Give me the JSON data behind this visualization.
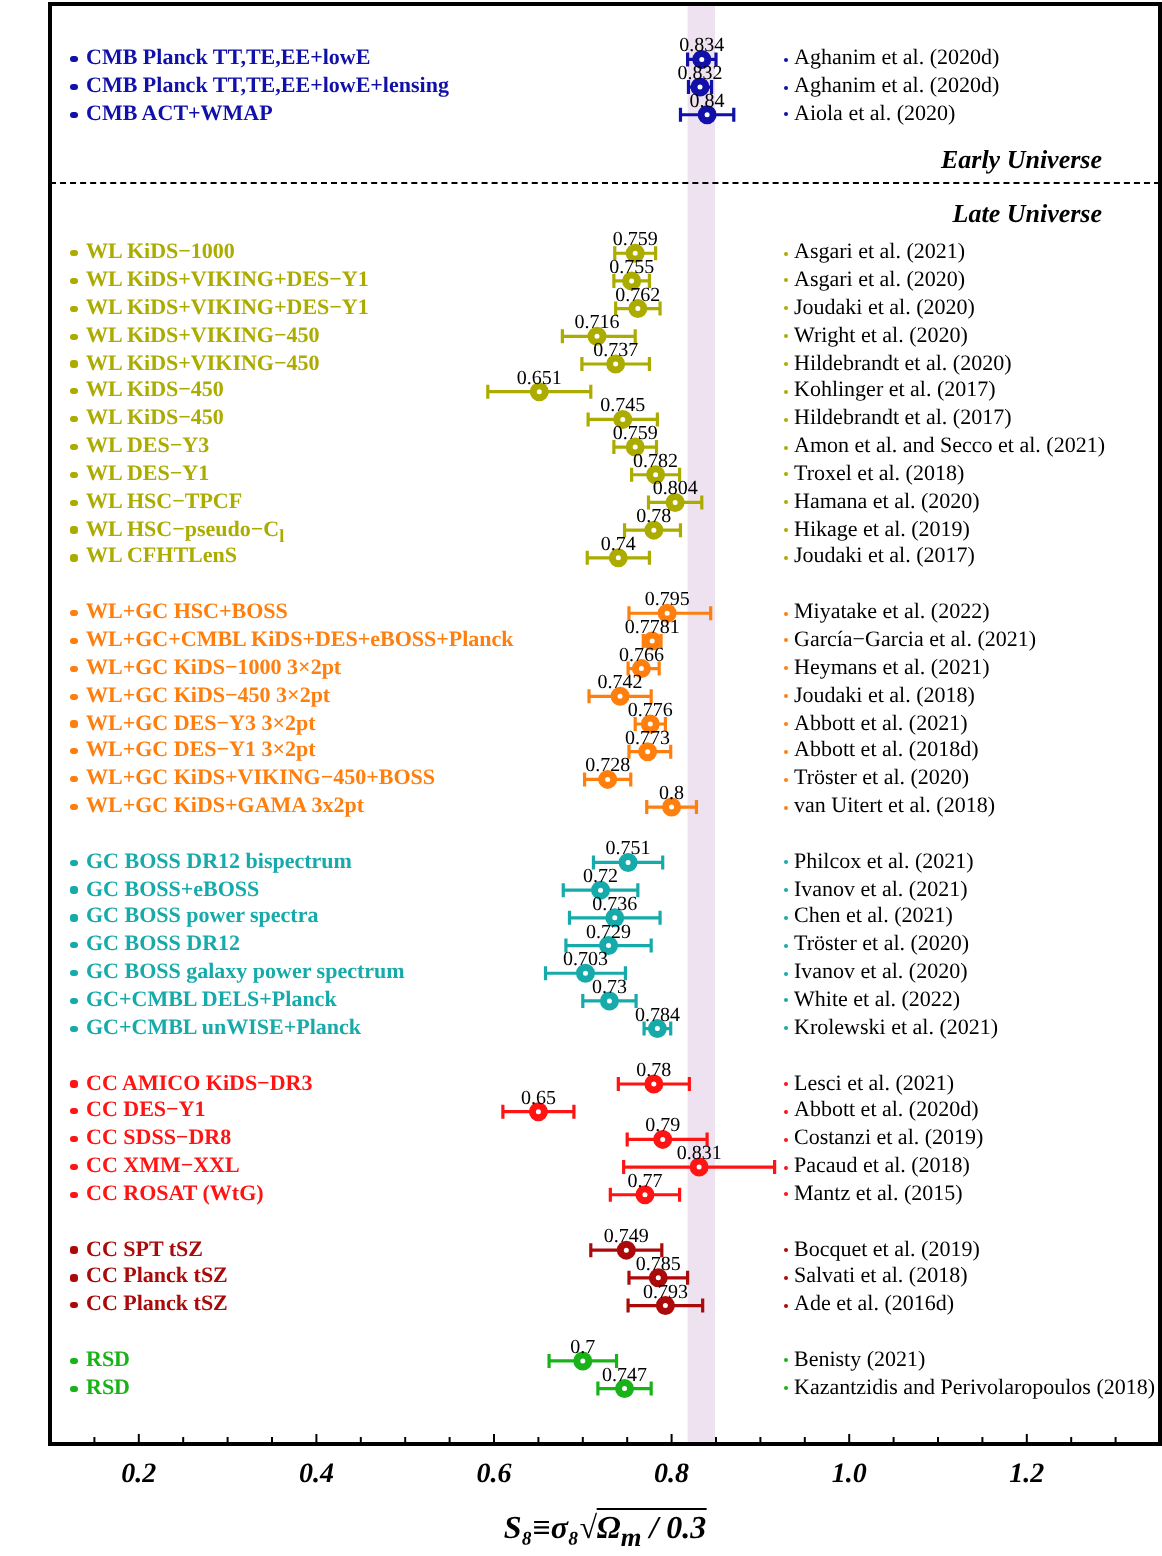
{
  "chart_data": {
    "type": "scatter",
    "orientation": "horizontal",
    "marker": "circle",
    "data_labels": true,
    "xlabel": "S₈≡σ₈√Ω$_{m}$ / 0.3",
    "annotations": [
      "Early Universe",
      "Late Universe"
    ],
    "xlim": [
      0.1,
      1.35
    ],
    "xticks": [
      {
        "value": 0.15,
        "label": null
      },
      0.2,
      {
        "value": 0.25,
        "label": null
      },
      {
        "value": 0.3,
        "label": null
      },
      {
        "value": 0.35,
        "label": null
      },
      0.4,
      {
        "value": 0.45,
        "label": null
      },
      {
        "value": 0.5,
        "label": null
      },
      {
        "value": 0.55,
        "label": null
      },
      0.6,
      {
        "value": 0.65,
        "label": null
      },
      {
        "value": 0.7,
        "label": null
      },
      {
        "value": 0.75,
        "label": null
      },
      0.8,
      {
        "value": 0.85,
        "label": null
      },
      {
        "value": 0.9,
        "label": null
      },
      {
        "value": 0.95,
        "label": null
      },
      {
        "value": 1,
        "label": "1.0"
      },
      {
        "value": 1.05,
        "label": null
      },
      {
        "value": 1.1,
        "label": null
      },
      {
        "value": 1.15,
        "label": null
      },
      1.2,
      {
        "value": 1.25,
        "label": null
      },
      {
        "value": 1.3,
        "label": null
      }
    ],
    "bands": [
      {
        "axis": "x",
        "from": 0.818,
        "to": 0.849,
        "color": "#eee2f0"
      }
    ],
    "categories": [
      "CMB Planck TT,TE,EE+lowE",
      "CMB Planck TT,TE,EE+lowE+lensing",
      "CMB ACT+WMAP",
      null,
      null,
      null,
      null,
      "WL KiDS−1000",
      "WL KiDS+VIKING+DES−Y1",
      "WL KiDS+VIKING+DES−Y1",
      "WL KiDS+VIKING−450",
      "WL KiDS+VIKING−450",
      "WL KiDS−450",
      "WL KiDS−450",
      "WL DES−Y3",
      "WL DES−Y1",
      "WL HSC−TPCF",
      "WL HSC−pseudo−C$_{l}$",
      "WL CFHTLenS",
      null,
      "WL+GC HSC+BOSS",
      "WL+GC+CMBL KiDS+DES+eBOSS+Planck",
      "WL+GC KiDS−1000 3×2pt",
      "WL+GC KiDS−450 3×2pt",
      "WL+GC DES−Y3 3×2pt",
      "WL+GC DES−Y1 3×2pt",
      "WL+GC KiDS+VIKING−450+BOSS",
      "WL+GC KiDS+GAMA 3x2pt",
      null,
      "GC BOSS DR12 bispectrum",
      "GC BOSS+eBOSS",
      "GC BOSS power spectra",
      "GC BOSS DR12",
      "GC BOSS galaxy power spectrum",
      "GC+CMBL DELS+Planck",
      "GC+CMBL unWISE+Planck",
      null,
      "CC AMICO KiDS−DR3",
      "CC DES−Y1",
      "CC SDSS−DR8",
      "CC XMM−XXL",
      "CC ROSAT (WtG)",
      null,
      "CC SPT tSZ",
      "CC Planck tSZ",
      "CC Planck tSZ",
      null,
      "RSD",
      "RSD"
    ],
    "y2_categories": [
      "Aghanim et al. (2020d)",
      "Aghanim et al. (2020d)",
      "Aiola et al. (2020)",
      null,
      null,
      null,
      null,
      "Asgari et al. (2021)",
      "Asgari et al. (2020)",
      "Joudaki et al. (2020)",
      "Wright et al. (2020)",
      "Hildebrandt et al. (2020)",
      "Kohlinger et al. (2017)",
      "Hildebrandt et al. (2017)",
      "Amon et al. and Secco et al. (2021)",
      "Troxel et al. (2018)",
      "Hamana et al. (2020)",
      "Hikage et al. (2019)",
      "Joudaki et al. (2017)",
      null,
      "Miyatake et al. (2022)",
      "García−Garcia et al. (2021)",
      "Heymans et al. (2021)",
      "Joudaki et al. (2018)",
      "Abbott et al. (2021)",
      "Abbott et al. (2018d)",
      "Tröster et al. (2020)",
      "van Uitert et al. (2018)",
      null,
      "Philcox et al. (2021)",
      "Ivanov et al. (2021)",
      "Chen et al. (2021)",
      "Tröster et al. (2020)",
      "Ivanov et al. (2020)",
      "White et al. (2022)",
      "Krolewski et al. (2021)",
      null,
      "Lesci et al. (2021)",
      "Abbott et al. (2020d)",
      "Costanzi et al. (2019)",
      "Pacaud et al. (2018)",
      "Mantz et al. (2015)",
      null,
      "Bocquet et al. (2019)",
      "Salvati et al. (2018)",
      "Ade et al. (2016d)",
      null,
      "Benisty (2021)",
      "Kazantzidis and Perivolaropoulos (2018)"
    ],
    "series": [
      {
        "color": "#1111aa",
        "values": [
          0.834,
          0.832,
          0.84,
          null,
          null,
          null,
          null,
          null,
          null,
          null,
          null,
          null,
          null,
          null,
          null,
          null,
          null,
          null,
          null,
          null,
          null,
          null,
          null,
          null,
          null,
          null,
          null,
          null,
          null,
          null,
          null,
          null,
          null,
          null,
          null,
          null,
          null,
          null,
          null,
          null,
          null,
          null,
          null,
          null,
          null,
          null,
          null,
          null,
          null
        ],
        "errors": [
          0.016,
          0.013,
          0.03,
          null,
          null,
          null,
          null,
          null,
          null,
          null,
          null,
          null,
          null,
          null,
          null,
          null,
          null,
          null,
          null,
          null,
          null,
          null,
          null,
          null,
          null,
          null,
          null,
          null,
          null,
          null,
          null,
          null,
          null,
          null,
          null,
          null,
          null,
          null,
          null,
          null,
          null,
          null,
          null,
          null,
          null,
          null,
          null,
          null,
          null
        ]
      },
      {
        "color": "#acac00",
        "values": [
          null,
          null,
          null,
          null,
          null,
          null,
          null,
          0.759,
          0.755,
          0.762,
          0.716,
          0.737,
          0.651,
          0.745,
          0.759,
          0.782,
          0.804,
          0.78,
          0.74,
          null,
          null,
          null,
          null,
          null,
          null,
          null,
          null,
          null,
          null,
          null,
          null,
          null,
          null,
          null,
          null,
          null,
          null,
          null,
          null,
          null,
          null,
          null,
          null,
          null,
          null,
          null,
          null,
          null,
          null
        ],
        "errors": [
          null,
          null,
          null,
          null,
          null,
          null,
          null,
          0.023,
          0.02,
          0.025,
          [
            0.677,
            0.759
          ],
          0.038,
          0.058,
          0.039,
          0.024,
          0.027,
          0.03,
          [
            0.747,
            0.81
          ],
          0.035,
          null,
          null,
          null,
          null,
          null,
          null,
          null,
          null,
          null,
          null,
          null,
          null,
          null,
          null,
          null,
          null,
          null,
          null,
          null,
          null,
          null,
          null,
          null,
          null,
          null,
          null,
          null,
          null,
          null,
          null
        ]
      },
      {
        "color": "#ff7f0e",
        "values": [
          null,
          null,
          null,
          null,
          null,
          null,
          null,
          null,
          null,
          null,
          null,
          null,
          null,
          null,
          null,
          null,
          null,
          null,
          null,
          null,
          0.795,
          0.7781,
          0.766,
          0.742,
          0.776,
          0.773,
          0.728,
          0.8,
          null,
          null,
          null,
          null,
          null,
          null,
          null,
          null,
          null,
          null,
          null,
          null,
          null,
          null,
          null,
          null,
          null,
          null,
          null,
          null,
          null
        ],
        "errors": [
          null,
          null,
          null,
          null,
          null,
          null,
          null,
          null,
          null,
          null,
          null,
          null,
          null,
          null,
          null,
          null,
          null,
          null,
          null,
          null,
          [
            0.752,
            0.844
          ],
          0.01,
          [
            0.751,
            0.786
          ],
          0.035,
          0.017,
          [
            0.752,
            0.799
          ],
          0.026,
          0.028,
          null,
          null,
          null,
          null,
          null,
          null,
          null,
          null,
          null,
          null,
          null,
          null,
          null,
          null,
          null,
          null,
          null,
          null,
          null,
          null,
          null
        ]
      },
      {
        "color": "#17aaaa",
        "values": [
          null,
          null,
          null,
          null,
          null,
          null,
          null,
          null,
          null,
          null,
          null,
          null,
          null,
          null,
          null,
          null,
          null,
          null,
          null,
          null,
          null,
          null,
          null,
          null,
          null,
          null,
          null,
          null,
          null,
          0.751,
          0.72,
          0.736,
          0.729,
          0.703,
          0.73,
          0.784,
          null,
          null,
          null,
          null,
          null,
          null,
          null,
          null,
          null,
          null,
          null,
          null,
          null
        ],
        "errors": [
          null,
          null,
          null,
          null,
          null,
          null,
          null,
          null,
          null,
          null,
          null,
          null,
          null,
          null,
          null,
          null,
          null,
          null,
          null,
          null,
          null,
          null,
          null,
          null,
          null,
          null,
          null,
          null,
          null,
          0.039,
          0.042,
          0.051,
          0.048,
          0.045,
          0.03,
          0.015,
          null,
          null,
          null,
          null,
          null,
          null,
          null,
          null,
          null,
          null,
          null,
          null,
          null
        ]
      },
      {
        "color": "#ff1414",
        "values": [
          null,
          null,
          null,
          null,
          null,
          null,
          null,
          null,
          null,
          null,
          null,
          null,
          null,
          null,
          null,
          null,
          null,
          null,
          null,
          null,
          null,
          null,
          null,
          null,
          null,
          null,
          null,
          null,
          null,
          null,
          null,
          null,
          null,
          null,
          null,
          null,
          null,
          0.78,
          0.65,
          0.79,
          0.831,
          0.77,
          null,
          null,
          null,
          null,
          null,
          null,
          null
        ],
        "errors": [
          null,
          null,
          null,
          null,
          null,
          null,
          null,
          null,
          null,
          null,
          null,
          null,
          null,
          null,
          null,
          null,
          null,
          null,
          null,
          null,
          null,
          null,
          null,
          null,
          null,
          null,
          null,
          null,
          null,
          null,
          null,
          null,
          null,
          null,
          null,
          null,
          null,
          0.04,
          0.04,
          [
            0.75,
            0.84
          ],
          0.085,
          0.039,
          null,
          null,
          null,
          null,
          null,
          null,
          null
        ]
      },
      {
        "color": "#aa0a0a",
        "values": [
          null,
          null,
          null,
          null,
          null,
          null,
          null,
          null,
          null,
          null,
          null,
          null,
          null,
          null,
          null,
          null,
          null,
          null,
          null,
          null,
          null,
          null,
          null,
          null,
          null,
          null,
          null,
          null,
          null,
          null,
          null,
          null,
          null,
          null,
          null,
          null,
          null,
          null,
          null,
          null,
          null,
          null,
          null,
          0.749,
          0.785,
          0.793,
          null,
          null,
          null
        ],
        "errors": [
          null,
          null,
          null,
          null,
          null,
          null,
          null,
          null,
          null,
          null,
          null,
          null,
          null,
          null,
          null,
          null,
          null,
          null,
          null,
          null,
          null,
          null,
          null,
          null,
          null,
          null,
          null,
          null,
          null,
          null,
          null,
          null,
          null,
          null,
          null,
          null,
          null,
          null,
          null,
          null,
          null,
          null,
          null,
          0.04,
          0.033,
          0.042,
          null,
          null,
          null
        ]
      },
      {
        "color": "#19b319",
        "values": [
          null,
          null,
          null,
          null,
          null,
          null,
          null,
          null,
          null,
          null,
          null,
          null,
          null,
          null,
          null,
          null,
          null,
          null,
          null,
          null,
          null,
          null,
          null,
          null,
          null,
          null,
          null,
          null,
          null,
          null,
          null,
          null,
          null,
          null,
          null,
          null,
          null,
          null,
          null,
          null,
          null,
          null,
          null,
          null,
          null,
          null,
          null,
          0.7,
          0.747
        ],
        "errors": [
          null,
          null,
          null,
          null,
          null,
          null,
          null,
          null,
          null,
          null,
          null,
          null,
          null,
          null,
          null,
          null,
          null,
          null,
          null,
          null,
          null,
          null,
          null,
          null,
          null,
          null,
          null,
          null,
          null,
          null,
          null,
          null,
          null,
          null,
          null,
          null,
          null,
          null,
          null,
          null,
          null,
          null,
          null,
          null,
          null,
          null,
          null,
          0.038,
          0.03
        ]
      }
    ]
  }
}
